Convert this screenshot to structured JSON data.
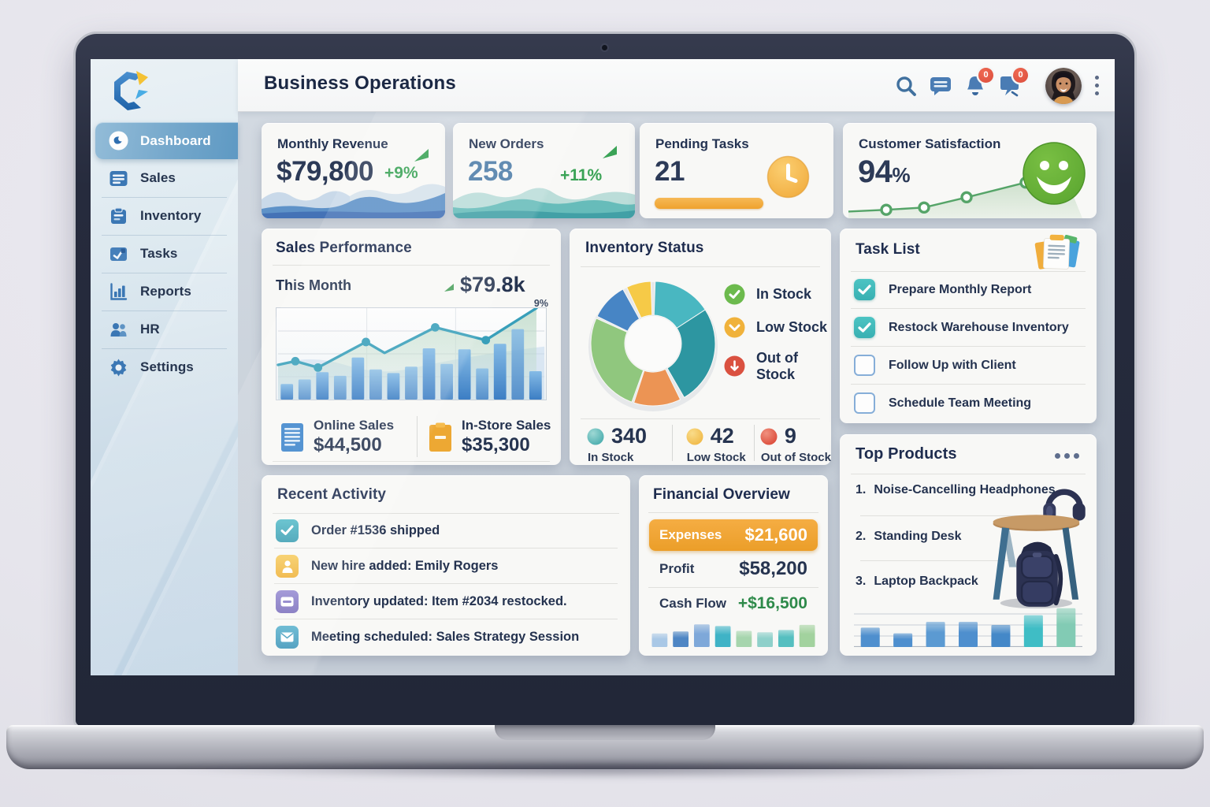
{
  "device": {
    "type": "laptop mockup",
    "camera": "webcam-dot"
  },
  "app": {
    "title": "Business Operations"
  },
  "sidebar": {
    "logo": "hexagon-c-logo",
    "items": [
      {
        "label": "Dashboard",
        "icon": "dashboard-icon",
        "active": true
      },
      {
        "label": "Sales",
        "icon": "sales-icon",
        "active": false
      },
      {
        "label": "Inventory",
        "icon": "inventory-icon",
        "active": false
      },
      {
        "label": "Tasks",
        "icon": "tasks-icon",
        "active": false
      },
      {
        "label": "Reports",
        "icon": "reports-icon",
        "active": false
      },
      {
        "label": "HR",
        "icon": "hr-icon",
        "active": false
      },
      {
        "label": "Settings",
        "icon": "settings-icon",
        "active": false
      }
    ]
  },
  "topbar": {
    "title": "Business Operations",
    "notifications_badge": "0",
    "feedback_badge": "0"
  },
  "kpis": {
    "revenue": {
      "label": "Monthly Revenue",
      "value": "$79,800",
      "delta": "+9%",
      "trend": "up"
    },
    "orders": {
      "label": "New Orders",
      "value": "258",
      "delta": "+11%",
      "trend": "up"
    },
    "tasks": {
      "label": "Pending Tasks",
      "value": "21",
      "progress_pct": 100
    },
    "satisfaction": {
      "label": "Customer Satisfaction",
      "value": "94",
      "unit": "%",
      "chart": {
        "type": "line",
        "color": "#55a468",
        "fill": "#9ec79e",
        "points_pct": [
          [
            1,
            88
          ],
          [
            17,
            85
          ],
          [
            33,
            81
          ],
          [
            51,
            63
          ],
          [
            76,
            37
          ],
          [
            92,
            18
          ]
        ],
        "dot_indices": [
          1,
          2,
          3,
          4
        ]
      }
    }
  },
  "sales_performance": {
    "title": "Sales Performance",
    "period_label": "This Month",
    "period_value": "$79.8k",
    "annotation": "9%",
    "chart": {
      "type": "bar+line",
      "bar_values_pct": [
        17,
        22,
        30,
        26,
        46,
        33,
        29,
        36,
        56,
        39,
        55,
        34,
        61,
        77,
        31
      ],
      "bar_color_top": "#85bbe6",
      "bar_color_bottom": "#3c7ec4",
      "line_color": "#389fba",
      "line_points_pct": [
        [
          0,
          62
        ],
        [
          6.5,
          58
        ],
        [
          15,
          65
        ],
        [
          33,
          37
        ],
        [
          40,
          49
        ],
        [
          59,
          21
        ],
        [
          78,
          35
        ],
        [
          97,
          0
        ]
      ],
      "dot_indices": [
        1,
        2,
        3,
        5,
        6
      ],
      "area_fill": "#b9d8c4",
      "grid": true
    },
    "stats": [
      {
        "icon": "document-icon",
        "label": "Online Sales",
        "value": "$44,500"
      },
      {
        "icon": "clipboard-icon",
        "label": "In-Store Sales",
        "value": "$35,300"
      }
    ]
  },
  "inventory_status": {
    "title": "Inventory Status",
    "donut": {
      "type": "donut",
      "segments": [
        {
          "name": "in-stock-a",
          "from": 2,
          "to": 57,
          "color": "#49b7c1"
        },
        {
          "name": "in-stock-b",
          "from": 57,
          "to": 150,
          "color": "#2d96a1"
        },
        {
          "name": "out-of-stock",
          "from": 154,
          "to": 198,
          "color": "#ec9454"
        },
        {
          "name": "in-stock-c",
          "from": 200,
          "to": 294,
          "color": "#90c77e"
        },
        {
          "name": "low-stock-b",
          "from": 296,
          "to": 331,
          "color": "#4785c5"
        },
        {
          "name": "low-stock-a",
          "from": 335,
          "to": 358,
          "color": "#f6ca47"
        }
      ]
    },
    "legend": [
      {
        "label": "In Stock",
        "icon": "check-circle-icon",
        "color": "#6cba4d"
      },
      {
        "label": "Low Stock",
        "icon": "chevron-down-circle-icon",
        "color": "#f0b23b"
      },
      {
        "label": "Out of Stock",
        "icon": "arrow-down-circle-icon",
        "color": "#da5140"
      }
    ],
    "stats": [
      {
        "value": "340",
        "label": "In Stock",
        "color": "#4fb3b4"
      },
      {
        "value": "42",
        "label": "Low Stock",
        "color": "#f2c245"
      },
      {
        "value": "9",
        "label": "Out of Stock",
        "color": "#dd5244"
      }
    ]
  },
  "task_list": {
    "title": "Task List",
    "items": [
      {
        "label": "Prepare Monthly Report",
        "done": true
      },
      {
        "label": "Restock Warehouse Inventory",
        "done": true
      },
      {
        "label": "Follow Up with Client",
        "done": false
      },
      {
        "label": "Schedule Team Meeting",
        "done": false
      }
    ]
  },
  "recent_activity": {
    "title": "Recent Activity",
    "items": [
      {
        "icon": "check-icon",
        "icon_color": "#4db3c2",
        "text": "Order #1536 shipped"
      },
      {
        "icon": "person-icon",
        "icon_color": "#f5c64d",
        "text": "New hire added: Emily Rogers"
      },
      {
        "icon": "card-icon",
        "icon_color": "#8b80c9",
        "text": "Inventory updated: Item #2034 restocked."
      },
      {
        "icon": "mail-icon",
        "icon_color": "#4aa9c6",
        "text": "Meeting scheduled: Sales Strategy Session"
      }
    ]
  },
  "financial_overview": {
    "title": "Financial Overview",
    "rows": [
      {
        "label": "Expenses",
        "value": "$21,600",
        "highlight": "orange"
      },
      {
        "label": "Profit",
        "value": "$58,200",
        "highlight": "none"
      },
      {
        "label": "Cash Flow",
        "value": "+$16,500",
        "highlight": "green-value"
      }
    ],
    "chart": {
      "type": "bar",
      "values_pct": [
        48,
        55,
        80,
        74,
        57,
        52,
        60,
        78
      ],
      "colors": [
        "#a9c8e6",
        "#4e86c4",
        "#7ea8d9",
        "#3fb3c6",
        "#a6d5ad",
        "#8ed0ca",
        "#55bfc0",
        "#a2d29e"
      ]
    }
  },
  "top_products": {
    "title": "Top Products",
    "items": [
      {
        "rank": "1.",
        "name": "Noise-Cancelling Headphones",
        "image": "headphones-image"
      },
      {
        "rank": "2.",
        "name": "Standing Desk",
        "image": "standing-desk-image"
      },
      {
        "rank": "3.",
        "name": "Laptop Backpack",
        "image": "backpack-image"
      }
    ],
    "chart": {
      "type": "bar",
      "values_pct": [
        44,
        31,
        57,
        57,
        50,
        72,
        88
      ],
      "colors": [
        "#4e8fce",
        "#4e8fce",
        "#5b9ad2",
        "#4e8fce",
        "#4488c8",
        "#3fbdc5",
        "#82cbb4"
      ],
      "grid": true
    }
  }
}
